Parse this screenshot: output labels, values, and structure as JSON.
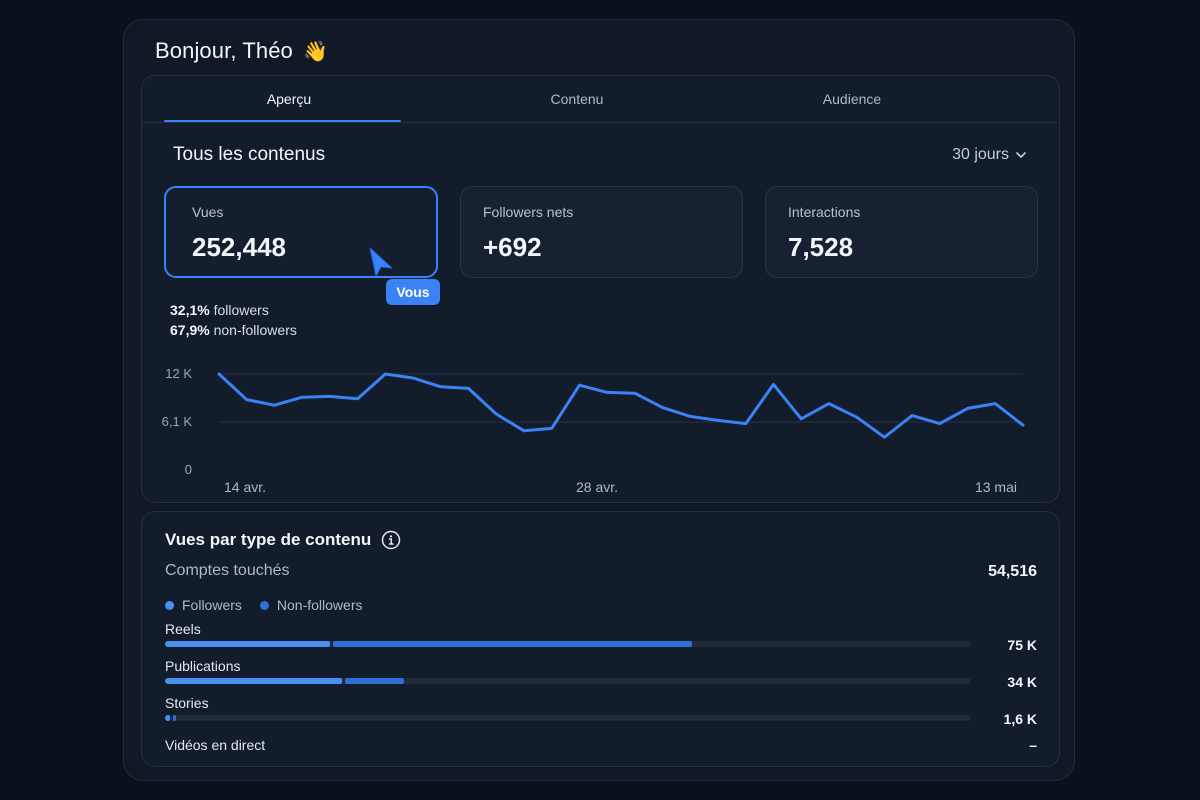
{
  "greeting": {
    "text": "Bonjour, Théo",
    "emoji": "👋"
  },
  "tabs": [
    {
      "label": "Aperçu",
      "active": true
    },
    {
      "label": "Contenu",
      "active": false
    },
    {
      "label": "Audience",
      "active": false
    }
  ],
  "overview": {
    "title": "Tous les contenus",
    "period": "30 jours",
    "metrics": [
      {
        "label": "Vues",
        "value": "252,448",
        "selected": true
      },
      {
        "label": "Followers nets",
        "value": "+692",
        "selected": false
      },
      {
        "label": "Interactions",
        "value": "7,528",
        "selected": false
      }
    ],
    "tooltip": "Vous",
    "split": {
      "followers_pct": "32,1%",
      "followers_label": "followers",
      "nonfollowers_pct": "67,9%",
      "nonfollowers_label": "non-followers"
    }
  },
  "chart_data": {
    "type": "line",
    "y_ticks": [
      "12 K",
      "6,1 K",
      "0"
    ],
    "x_ticks": [
      "14 avr.",
      "28 avr.",
      "13 mai"
    ],
    "ylim": [
      0,
      12000
    ],
    "values": [
      12000,
      8800,
      8100,
      9100,
      9200,
      8900,
      12000,
      11500,
      10400,
      10200,
      7000,
      4900,
      5200,
      10600,
      9700,
      9600,
      7800,
      6700,
      6200,
      5800,
      10700,
      6400,
      8300,
      6600,
      4100,
      6800,
      5800,
      7700,
      8300,
      5600
    ],
    "color": "#3b82f6"
  },
  "content_types": {
    "title": "Vues par type de contenu",
    "reach_label": "Comptes touchés",
    "reach_value": "54,516",
    "legend": [
      {
        "label": "Followers",
        "color": "#4a90f0"
      },
      {
        "label": "Non-followers",
        "color": "#2f6fd8"
      }
    ],
    "rows": [
      {
        "label": "Reels",
        "value": "75 K",
        "followers_fraction": 0.205,
        "nonfollowers_fraction": 0.445
      },
      {
        "label": "Publications",
        "value": "34 K",
        "followers_fraction": 0.22,
        "nonfollowers_fraction": 0.073
      },
      {
        "label": "Stories",
        "value": "1,6 K",
        "followers_fraction": 0.006,
        "nonfollowers_fraction": 0.004
      },
      {
        "label": "Vidéos en direct",
        "value": "–",
        "followers_fraction": 0,
        "nonfollowers_fraction": 0
      }
    ]
  }
}
